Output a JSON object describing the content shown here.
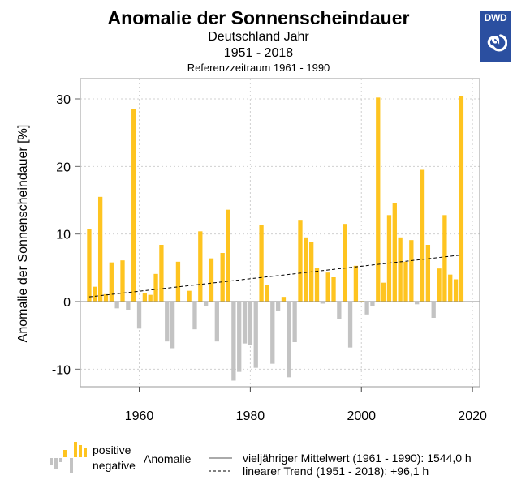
{
  "header": {
    "title": "Anomalie der Sonnenscheindauer",
    "subtitle": "Deutschland Jahr",
    "period": "1951 - 2018",
    "reference": "Referenzzeitraum 1961 - 1990",
    "logo_text": "DWD"
  },
  "legend": {
    "positive": "positive",
    "negative": "negative",
    "anomaly": "Anomalie",
    "mean_line": "vieljähriger Mittelwert (1961 - 1990): 1544,0 h",
    "trend_line": "linearer Trend (1951 - 2018): +96,1 h"
  },
  "colors": {
    "positive": "#fec420",
    "negative": "#c3c3c3",
    "logo": "#2b4fa0",
    "grid": "#d0d0d0",
    "axis": "#aaaaaa"
  },
  "chart_data": {
    "type": "bar",
    "title": "Anomalie der Sonnenscheindauer",
    "subtitle": "Deutschland Jahr 1951 - 2018, Referenzzeitraum 1961 - 1990",
    "xlabel": "",
    "ylabel": "Anomalie der Sonnenscheindauer [%]",
    "xlim": [
      1949.4,
      2021.3
    ],
    "ylim": [
      -12.6,
      33
    ],
    "xticks": [
      1960,
      1980,
      2000,
      2020
    ],
    "yticks": [
      -10,
      0,
      10,
      20,
      30
    ],
    "grid": true,
    "legend_position": "bottom",
    "years": [
      1951,
      1952,
      1953,
      1954,
      1955,
      1956,
      1957,
      1958,
      1959,
      1960,
      1961,
      1962,
      1963,
      1964,
      1965,
      1966,
      1967,
      1968,
      1969,
      1970,
      1971,
      1972,
      1973,
      1974,
      1975,
      1976,
      1977,
      1978,
      1979,
      1980,
      1981,
      1982,
      1983,
      1984,
      1985,
      1986,
      1987,
      1988,
      1989,
      1990,
      1991,
      1992,
      1993,
      1994,
      1995,
      1996,
      1997,
      1998,
      1999,
      2000,
      2001,
      2002,
      2003,
      2004,
      2005,
      2006,
      2007,
      2008,
      2009,
      2010,
      2011,
      2012,
      2013,
      2014,
      2015,
      2016,
      2017,
      2018
    ],
    "values": [
      10.8,
      2.2,
      15.5,
      1.1,
      5.8,
      -1.0,
      6.1,
      -1.2,
      28.5,
      -4.0,
      1.2,
      1.0,
      4.1,
      8.4,
      -5.9,
      -6.9,
      5.9,
      -0.1,
      1.6,
      -4.1,
      10.4,
      -0.6,
      6.4,
      -5.9,
      7.2,
      13.6,
      -11.7,
      -10.4,
      -6.2,
      -6.4,
      -9.8,
      11.3,
      2.5,
      -9.2,
      -1.4,
      0.7,
      -11.2,
      -6.0,
      12.1,
      9.5,
      8.8,
      5.0,
      -0.3,
      4.3,
      3.6,
      -2.6,
      11.5,
      -6.8,
      5.3,
      0.1,
      -1.9,
      -0.7,
      30.2,
      2.8,
      12.8,
      14.6,
      9.5,
      5.9,
      9.1,
      -0.4,
      19.5,
      8.4,
      -2.4,
      4.9,
      12.8,
      4.0,
      3.3,
      30.4
    ],
    "trend": {
      "start": [
        1951,
        0.7
      ],
      "end": [
        2018,
        6.9
      ]
    },
    "mean_line_value": 0
  }
}
